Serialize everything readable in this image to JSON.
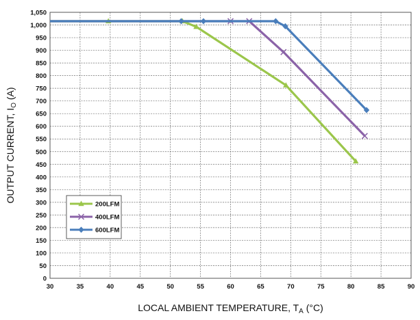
{
  "chart_data": {
    "type": "line",
    "xlabel": "LOCAL AMBIENT TEMPERATURE, T",
    "xlabel_sub": "A",
    "xlabel_unit": " (°C)",
    "ylabel": "OUTPUT CURRENT, I",
    "ylabel_sub": "O",
    "ylabel_unit": " (A)",
    "xlim": [
      30,
      90
    ],
    "ylim": [
      0,
      1050
    ],
    "x_ticks": [
      30,
      35,
      40,
      45,
      50,
      55,
      60,
      65,
      70,
      75,
      80,
      85,
      90
    ],
    "x_tick_labels": [
      "30",
      "35",
      "40",
      "45",
      "50",
      "55",
      "60",
      "65",
      "70",
      "75",
      "80",
      "85",
      "90"
    ],
    "y_ticks": [
      0,
      50,
      100,
      150,
      200,
      250,
      300,
      350,
      400,
      450,
      500,
      550,
      600,
      650,
      700,
      750,
      800,
      850,
      900,
      950,
      1000,
      1050
    ],
    "y_tick_labels": [
      "0",
      "50",
      "100",
      "150",
      "200",
      "250",
      "300",
      "350",
      "400",
      "450",
      "500",
      "550",
      "600",
      "650",
      "700",
      "750",
      "800",
      "850",
      "900",
      "950",
      "1,000",
      "1,050"
    ],
    "grid": true,
    "legend_position": "bottom-left",
    "series": [
      {
        "name": "200LFM",
        "color": "#9BC64B",
        "marker": "triangle",
        "points": [
          [
            30,
            1015
          ],
          [
            39.7,
            1015
          ],
          [
            52,
            1015
          ],
          [
            54.3,
            993
          ],
          [
            69.2,
            762
          ],
          [
            80.8,
            462
          ]
        ]
      },
      {
        "name": "400LFM",
        "color": "#8B63A8",
        "marker": "x",
        "points": [
          [
            30,
            1015
          ],
          [
            60,
            1015
          ],
          [
            63.1,
            1015
          ],
          [
            68.8,
            893
          ],
          [
            82.3,
            562
          ]
        ]
      },
      {
        "name": "600LFM",
        "color": "#4A7EBB",
        "marker": "diamond",
        "points": [
          [
            30,
            1015
          ],
          [
            51.8,
            1015
          ],
          [
            55.5,
            1015
          ],
          [
            67.5,
            1015
          ],
          [
            69.1,
            995
          ],
          [
            82.6,
            664
          ]
        ]
      }
    ]
  }
}
